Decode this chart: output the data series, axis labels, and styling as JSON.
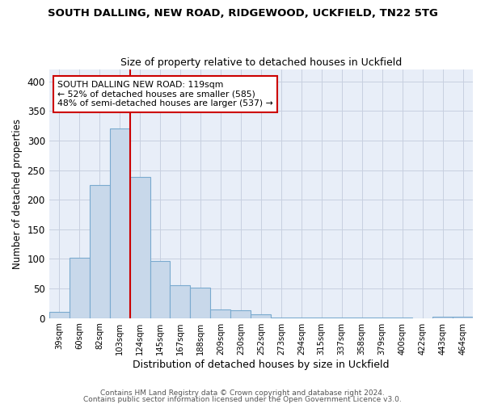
{
  "title": "SOUTH DALLING, NEW ROAD, RIDGEWOOD, UCKFIELD, TN22 5TG",
  "subtitle": "Size of property relative to detached houses in Uckfield",
  "xlabel": "Distribution of detached houses by size in Uckfield",
  "ylabel": "Number of detached properties",
  "categories": [
    "39sqm",
    "60sqm",
    "82sqm",
    "103sqm",
    "124sqm",
    "145sqm",
    "167sqm",
    "188sqm",
    "209sqm",
    "230sqm",
    "252sqm",
    "273sqm",
    "294sqm",
    "315sqm",
    "337sqm",
    "358sqm",
    "379sqm",
    "400sqm",
    "422sqm",
    "443sqm",
    "464sqm"
  ],
  "values": [
    10,
    102,
    225,
    320,
    238,
    96,
    55,
    52,
    15,
    13,
    7,
    1,
    1,
    1,
    1,
    1,
    1,
    1,
    0,
    3,
    3
  ],
  "bar_color": "#c8d8ea",
  "bar_edge_color": "#7aaacf",
  "red_line_x": 3.5,
  "ann_line1": "SOUTH DALLING NEW ROAD: 119sqm",
  "ann_line2": "← 52% of detached houses are smaller (585)",
  "ann_line3": "48% of semi-detached houses are larger (537) →",
  "annotation_box_edge": "#cc0000",
  "footer1": "Contains HM Land Registry data © Crown copyright and database right 2024.",
  "footer2": "Contains public sector information licensed under the Open Government Licence v3.0.",
  "ylim": [
    0,
    420
  ],
  "background_color": "#ffffff",
  "plot_bg_color": "#e8eef8",
  "grid_color": "#c8d0e0"
}
